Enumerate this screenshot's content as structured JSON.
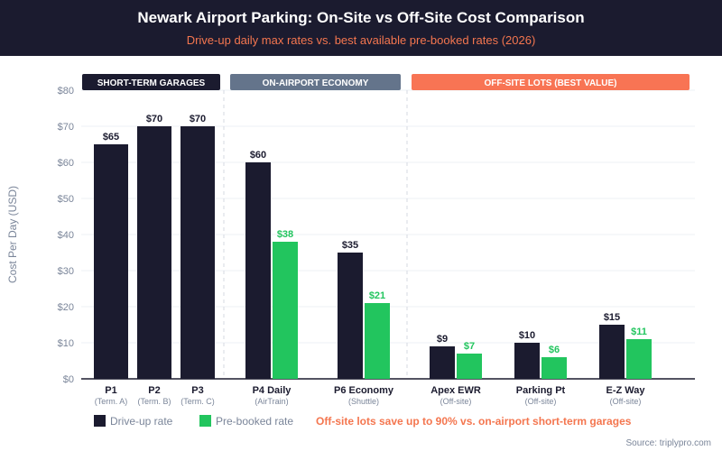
{
  "header": {
    "title": "Newark Airport Parking: On-Site vs Off-Site Cost Comparison",
    "subtitle": "Drive-up daily max rates vs. best available pre-booked rates (2026)"
  },
  "colors": {
    "drive": "#1b1b2f",
    "booked": "#22c55e",
    "economy": "#64748b",
    "offsite": "#f87454",
    "annot": "#f4764f"
  },
  "chart_data": {
    "type": "bar",
    "ylabel": "Cost Per Day (USD)",
    "ylim": [
      0,
      80
    ],
    "yticks": [
      "$0",
      "$10",
      "$20",
      "$30",
      "$40",
      "$50",
      "$60",
      "$70",
      "$80"
    ],
    "groups": [
      {
        "label": "SHORT-TERM GARAGES",
        "color": "#1b1b2f"
      },
      {
        "label": "ON-AIRPORT ECONOMY",
        "color": "#64748b"
      },
      {
        "label": "OFF-SITE LOTS (BEST VALUE)",
        "color": "#f87454"
      }
    ],
    "categories": [
      {
        "name": "P1",
        "sub": "(Term. A)",
        "drive": 65,
        "booked": null,
        "drive_label": "$65",
        "booked_label": null
      },
      {
        "name": "P2",
        "sub": "(Term. B)",
        "drive": 70,
        "booked": null,
        "drive_label": "$70",
        "booked_label": null
      },
      {
        "name": "P3",
        "sub": "(Term. C)",
        "drive": 70,
        "booked": null,
        "drive_label": "$70",
        "booked_label": null
      },
      {
        "name": "P4 Daily",
        "sub": "(AirTrain)",
        "drive": 60,
        "booked": 38,
        "drive_label": "$60",
        "booked_label": "$38"
      },
      {
        "name": "P6 Economy",
        "sub": "(Shuttle)",
        "drive": 35,
        "booked": 21,
        "drive_label": "$35",
        "booked_label": "$21"
      },
      {
        "name": "Apex EWR",
        "sub": "(Off-site)",
        "drive": 9,
        "booked": 7,
        "drive_label": "$9",
        "booked_label": "$7"
      },
      {
        "name": "Parking Pt",
        "sub": "(Off-site)",
        "drive": 10,
        "booked": 6,
        "drive_label": "$10",
        "booked_label": "$6"
      },
      {
        "name": "E-Z Way",
        "sub": "(Off-site)",
        "drive": 15,
        "booked": 11,
        "drive_label": "$15",
        "booked_label": "$11"
      }
    ],
    "legend": [
      "Drive-up rate",
      "Pre-booked rate"
    ],
    "annotation": "Off-site lots save up to 90% vs. on-airport short-term garages",
    "source": "Source: triplypro.com"
  }
}
